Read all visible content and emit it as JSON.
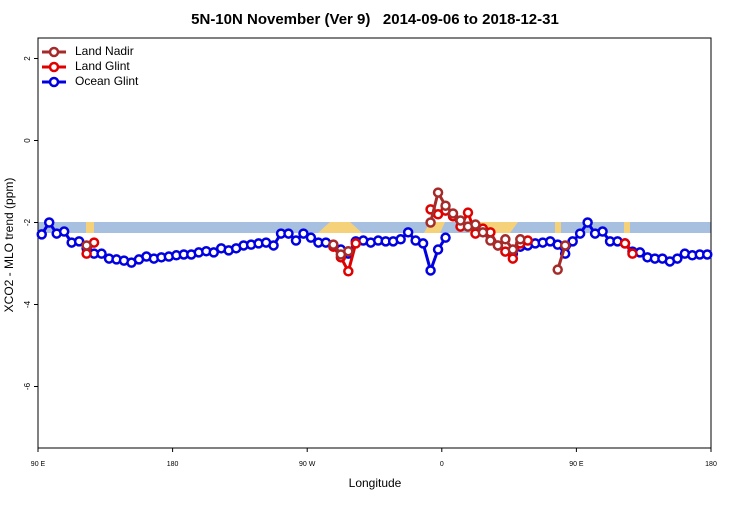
{
  "chart_data": {
    "type": "line",
    "title": "5N-10N November (Ver 9)   2014-09-06 to 2018-12-31",
    "x_label": "Longitude",
    "y_label": "XCO2 - MLO trend (ppm)",
    "xlim": [
      90,
      540
    ],
    "ylim": [
      -7.5,
      2.5
    ],
    "xticks": [
      {
        "value": 90,
        "label": "90 E"
      },
      {
        "value": 180,
        "label": "180"
      },
      {
        "value": 270,
        "label": "90 W"
      },
      {
        "value": 360,
        "label": "0"
      },
      {
        "value": 450,
        "label": "90 E"
      },
      {
        "value": 540,
        "label": "180"
      }
    ],
    "yticks": [
      2,
      0,
      -2,
      -4,
      -6
    ],
    "legend": "top-left",
    "x": [
      92.5,
      97.5,
      102.5,
      107.5,
      112.5,
      117.5,
      122.5,
      127.5,
      132.5,
      137.5,
      142.5,
      147.5,
      152.5,
      157.5,
      162.5,
      167.5,
      172.5,
      177.5,
      182.5,
      187.5,
      192.5,
      197.5,
      202.5,
      207.5,
      212.5,
      217.5,
      222.5,
      227.5,
      232.5,
      237.5,
      242.5,
      247.5,
      252.5,
      257.5,
      262.5,
      267.5,
      272.5,
      277.5,
      282.5,
      287.5,
      292.5,
      297.5,
      302.5,
      307.5,
      312.5,
      317.5,
      322.5,
      327.5,
      332.5,
      337.5,
      342.5,
      347.5,
      352.5,
      357.5,
      362.5,
      367.5,
      372.5,
      377.5,
      382.5,
      387.5,
      392.5,
      397.5,
      402.5,
      407.5,
      412.5,
      417.5,
      422.5,
      427.5,
      432.5,
      437.5,
      442.5,
      447.5,
      452.5,
      457.5,
      462.5,
      467.5,
      472.5,
      477.5,
      482.5,
      487.5,
      492.5,
      497.5,
      502.5,
      507.5,
      512.5,
      517.5,
      522.5,
      527.5,
      532.5,
      537.5
    ],
    "series": [
      {
        "name": "Land Nadir",
        "color": "#a52a2a",
        "values": [
          null,
          null,
          null,
          null,
          null,
          null,
          -2.56,
          null,
          null,
          null,
          null,
          null,
          null,
          null,
          null,
          null,
          null,
          null,
          null,
          null,
          null,
          null,
          null,
          null,
          null,
          null,
          null,
          null,
          null,
          null,
          null,
          null,
          null,
          null,
          null,
          null,
          null,
          null,
          null,
          -2.54,
          -2.78,
          -2.7,
          null,
          null,
          null,
          null,
          null,
          null,
          null,
          null,
          null,
          null,
          -2.0,
          -1.27,
          -1.59,
          -1.78,
          -1.95,
          -2.1,
          -2.05,
          -2.24,
          -2.44,
          -2.56,
          -2.41,
          -2.66,
          -2.41,
          null,
          null,
          null,
          null,
          -3.15,
          -2.56,
          null,
          null,
          null,
          null,
          null,
          null,
          null,
          null,
          null,
          null,
          null,
          null,
          null,
          null,
          null,
          null,
          null,
          null,
          null
        ]
      },
      {
        "name": "Land Glint",
        "color": "#e00000",
        "values": [
          null,
          null,
          null,
          null,
          null,
          null,
          -2.76,
          -2.49,
          null,
          null,
          null,
          null,
          null,
          null,
          null,
          null,
          null,
          null,
          null,
          null,
          null,
          null,
          null,
          null,
          null,
          null,
          null,
          null,
          null,
          null,
          null,
          null,
          null,
          null,
          null,
          null,
          null,
          null,
          null,
          -2.59,
          -2.85,
          -3.19,
          -2.51,
          null,
          null,
          null,
          null,
          null,
          null,
          null,
          null,
          null,
          -1.68,
          -1.8,
          -1.71,
          -1.85,
          -2.1,
          -1.76,
          -2.27,
          -2.15,
          -2.24,
          -2.56,
          -2.71,
          -2.88,
          -2.51,
          -2.44,
          null,
          null,
          null,
          null,
          null,
          null,
          null,
          null,
          null,
          null,
          null,
          null,
          -2.51,
          -2.76,
          null,
          null,
          null,
          null,
          null,
          null,
          null,
          null,
          null,
          null
        ]
      },
      {
        "name": "Ocean Glint",
        "color": "#0000e0",
        "values": [
          -2.29,
          -2.0,
          -2.27,
          -2.22,
          -2.49,
          -2.46,
          -2.63,
          -2.76,
          -2.76,
          -2.88,
          -2.9,
          -2.93,
          -2.98,
          -2.9,
          -2.83,
          -2.88,
          -2.85,
          -2.83,
          -2.8,
          -2.78,
          -2.78,
          -2.73,
          -2.7,
          -2.73,
          -2.63,
          -2.68,
          -2.63,
          -2.56,
          -2.54,
          -2.51,
          -2.49,
          -2.56,
          -2.27,
          -2.27,
          -2.44,
          -2.27,
          -2.37,
          -2.49,
          -2.49,
          -2.56,
          -2.66,
          -2.76,
          -2.46,
          -2.44,
          -2.49,
          -2.44,
          -2.46,
          -2.46,
          -2.41,
          -2.24,
          -2.44,
          -2.51,
          -3.17,
          -2.66,
          -2.37,
          null,
          null,
          null,
          null,
          null,
          null,
          null,
          null,
          -2.76,
          -2.59,
          -2.56,
          -2.51,
          -2.49,
          -2.46,
          -2.54,
          -2.76,
          -2.46,
          -2.27,
          -2.0,
          -2.27,
          -2.22,
          -2.46,
          -2.46,
          -2.51,
          -2.71,
          -2.73,
          -2.85,
          -2.88,
          -2.88,
          -2.95,
          -2.88,
          -2.76,
          -2.8,
          -2.78,
          -2.78
        ]
      }
    ]
  }
}
